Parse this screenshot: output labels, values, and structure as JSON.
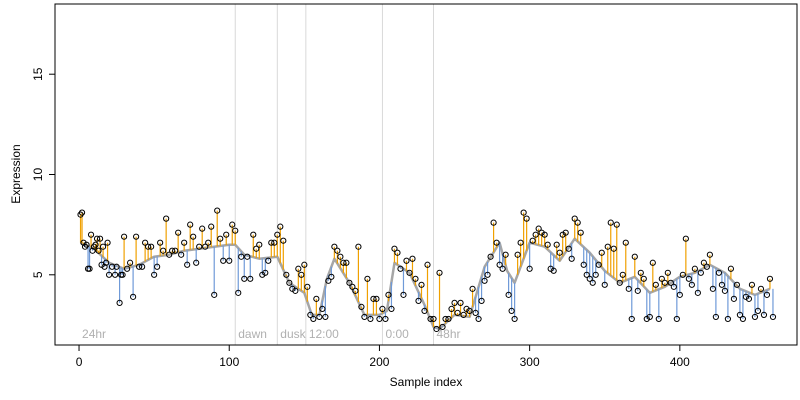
{
  "chart_data": {
    "type": "scatter",
    "title": "",
    "xlabel": "Sample index",
    "ylabel": "Expression",
    "xlim": [
      -16,
      478
    ],
    "ylim": [
      1.5,
      18.5
    ],
    "x_ticks": [
      0,
      100,
      200,
      300,
      400
    ],
    "y_ticks": [
      5,
      10,
      15
    ],
    "grid": false,
    "legend": "none",
    "colors": {
      "up_segment": "#f0a000",
      "down_segment": "#6f9ad8",
      "fitted_line": "#a6a6a6",
      "region_line": "#d9d9d9",
      "region_label": "#b0b0b0",
      "point_edge": "#000000"
    },
    "regions": [
      {
        "label": "24hr",
        "x_start": 0,
        "x_end": 104
      },
      {
        "label": "dawn",
        "x_start": 104,
        "x_end": 132
      },
      {
        "label": "dusk",
        "x_start": 132,
        "x_end": 151
      },
      {
        "label": "12:00",
        "x_start": 151,
        "x_end": 202
      },
      {
        "label": "0:00",
        "x_start": 202,
        "x_end": 236
      },
      {
        "label": "48hr",
        "x_start": 236,
        "x_end": 462
      }
    ],
    "fitted_line": [
      [
        1,
        6.6
      ],
      [
        10,
        6.3
      ],
      [
        20,
        5.6
      ],
      [
        30,
        5.3
      ],
      [
        40,
        5.5
      ],
      [
        50,
        5.9
      ],
      [
        60,
        6.0
      ],
      [
        70,
        6.2
      ],
      [
        80,
        6.3
      ],
      [
        90,
        6.4
      ],
      [
        100,
        6.5
      ],
      [
        104,
        6.5
      ],
      [
        110,
        6.0
      ],
      [
        120,
        5.8
      ],
      [
        132,
        5.9
      ],
      [
        140,
        4.6
      ],
      [
        150,
        4.1
      ],
      [
        155,
        3.0
      ],
      [
        160,
        3.0
      ],
      [
        165,
        4.8
      ],
      [
        170,
        5.8
      ],
      [
        180,
        4.6
      ],
      [
        190,
        3.0
      ],
      [
        200,
        3.0
      ],
      [
        205,
        3.2
      ],
      [
        210,
        5.6
      ],
      [
        220,
        5.1
      ],
      [
        230,
        3.5
      ],
      [
        236,
        2.4
      ],
      [
        240,
        2.3
      ],
      [
        250,
        3.0
      ],
      [
        260,
        2.9
      ],
      [
        270,
        5.4
      ],
      [
        280,
        6.6
      ],
      [
        285,
        5.2
      ],
      [
        290,
        4.6
      ],
      [
        300,
        6.6
      ],
      [
        310,
        6.4
      ],
      [
        320,
        5.7
      ],
      [
        330,
        6.8
      ],
      [
        340,
        6.1
      ],
      [
        350,
        5.2
      ],
      [
        360,
        4.6
      ],
      [
        370,
        4.9
      ],
      [
        380,
        4.1
      ],
      [
        390,
        4.4
      ],
      [
        400,
        4.9
      ],
      [
        410,
        5.1
      ],
      [
        420,
        5.5
      ],
      [
        430,
        5.1
      ],
      [
        440,
        4.3
      ],
      [
        450,
        4.0
      ],
      [
        460,
        4.3
      ]
    ],
    "points": [
      [
        1,
        8.0
      ],
      [
        2,
        8.1
      ],
      [
        3,
        6.6
      ],
      [
        4,
        6.4
      ],
      [
        5,
        6.5
      ],
      [
        6,
        5.3
      ],
      [
        7,
        5.3
      ],
      [
        8,
        7.0
      ],
      [
        9,
        6.2
      ],
      [
        10,
        6.4
      ],
      [
        11,
        6.5
      ],
      [
        12,
        6.8
      ],
      [
        13,
        6.2
      ],
      [
        14,
        6.8
      ],
      [
        15,
        5.5
      ],
      [
        16,
        6.4
      ],
      [
        17,
        5.4
      ],
      [
        18,
        5.6
      ],
      [
        19,
        6.6
      ],
      [
        20,
        5.0
      ],
      [
        22,
        5.4
      ],
      [
        24,
        5.0
      ],
      [
        25,
        5.4
      ],
      [
        27,
        3.6
      ],
      [
        28,
        5.0
      ],
      [
        29,
        5.0
      ],
      [
        30,
        6.9
      ],
      [
        32,
        5.3
      ],
      [
        34,
        5.6
      ],
      [
        36,
        3.9
      ],
      [
        38,
        6.9
      ],
      [
        40,
        5.4
      ],
      [
        42,
        5.4
      ],
      [
        44,
        6.6
      ],
      [
        46,
        6.4
      ],
      [
        48,
        6.4
      ],
      [
        50,
        5.0
      ],
      [
        52,
        5.4
      ],
      [
        54,
        6.6
      ],
      [
        56,
        6.2
      ],
      [
        58,
        7.8
      ],
      [
        60,
        6.0
      ],
      [
        62,
        6.2
      ],
      [
        64,
        6.2
      ],
      [
        66,
        7.1
      ],
      [
        68,
        6.0
      ],
      [
        70,
        6.6
      ],
      [
        72,
        5.5
      ],
      [
        74,
        7.5
      ],
      [
        76,
        6.9
      ],
      [
        78,
        5.6
      ],
      [
        80,
        6.4
      ],
      [
        82,
        7.3
      ],
      [
        84,
        6.4
      ],
      [
        86,
        6.6
      ],
      [
        88,
        7.4
      ],
      [
        90,
        4.0
      ],
      [
        92,
        8.2
      ],
      [
        94,
        6.8
      ],
      [
        96,
        5.7
      ],
      [
        98,
        7.0
      ],
      [
        100,
        5.7
      ],
      [
        102,
        7.5
      ],
      [
        104,
        7.2
      ],
      [
        106,
        4.1
      ],
      [
        108,
        5.9
      ],
      [
        110,
        4.8
      ],
      [
        112,
        5.9
      ],
      [
        114,
        4.8
      ],
      [
        116,
        7.0
      ],
      [
        118,
        6.3
      ],
      [
        120,
        6.5
      ],
      [
        122,
        5.0
      ],
      [
        124,
        5.1
      ],
      [
        126,
        5.7
      ],
      [
        128,
        6.6
      ],
      [
        130,
        6.6
      ],
      [
        132,
        7.0
      ],
      [
        134,
        7.4
      ],
      [
        136,
        6.7
      ],
      [
        138,
        5.0
      ],
      [
        140,
        4.6
      ],
      [
        142,
        4.3
      ],
      [
        144,
        4.2
      ],
      [
        146,
        5.3
      ],
      [
        148,
        5.0
      ],
      [
        150,
        5.5
      ],
      [
        152,
        4.4
      ],
      [
        154,
        3.0
      ],
      [
        156,
        2.8
      ],
      [
        158,
        3.8
      ],
      [
        160,
        2.9
      ],
      [
        162,
        3.3
      ],
      [
        164,
        2.9
      ],
      [
        166,
        4.7
      ],
      [
        168,
        4.9
      ],
      [
        170,
        6.4
      ],
      [
        172,
        6.2
      ],
      [
        174,
        5.9
      ],
      [
        176,
        5.6
      ],
      [
        178,
        5.6
      ],
      [
        180,
        4.6
      ],
      [
        182,
        4.4
      ],
      [
        184,
        4.2
      ],
      [
        186,
        6.4
      ],
      [
        188,
        3.4
      ],
      [
        190,
        2.9
      ],
      [
        192,
        4.8
      ],
      [
        194,
        2.8
      ],
      [
        196,
        3.8
      ],
      [
        198,
        3.8
      ],
      [
        200,
        2.8
      ],
      [
        202,
        3.3
      ],
      [
        204,
        2.8
      ],
      [
        206,
        4.0
      ],
      [
        208,
        3.3
      ],
      [
        210,
        6.3
      ],
      [
        212,
        6.1
      ],
      [
        214,
        5.3
      ],
      [
        216,
        4.0
      ],
      [
        218,
        5.7
      ],
      [
        220,
        5.1
      ],
      [
        222,
        5.8
      ],
      [
        224,
        4.8
      ],
      [
        226,
        3.7
      ],
      [
        228,
        4.5
      ],
      [
        230,
        3.2
      ],
      [
        232,
        5.5
      ],
      [
        234,
        2.8
      ],
      [
        236,
        2.8
      ],
      [
        238,
        2.3
      ],
      [
        240,
        5.1
      ],
      [
        242,
        2.4
      ],
      [
        244,
        2.8
      ],
      [
        246,
        2.8
      ],
      [
        248,
        3.3
      ],
      [
        250,
        3.6
      ],
      [
        252,
        3.1
      ],
      [
        254,
        3.6
      ],
      [
        256,
        3.0
      ],
      [
        258,
        3.3
      ],
      [
        260,
        3.2
      ],
      [
        262,
        4.3
      ],
      [
        264,
        3.1
      ],
      [
        266,
        2.8
      ],
      [
        268,
        3.7
      ],
      [
        270,
        4.7
      ],
      [
        272,
        5.0
      ],
      [
        274,
        5.9
      ],
      [
        276,
        7.6
      ],
      [
        278,
        6.6
      ],
      [
        280,
        5.5
      ],
      [
        282,
        5.3
      ],
      [
        284,
        6.0
      ],
      [
        286,
        4.0
      ],
      [
        288,
        3.2
      ],
      [
        290,
        2.8
      ],
      [
        292,
        6.0
      ],
      [
        294,
        6.6
      ],
      [
        296,
        8.1
      ],
      [
        298,
        7.8
      ],
      [
        300,
        5.3
      ],
      [
        302,
        6.7
      ],
      [
        304,
        7.0
      ],
      [
        306,
        7.3
      ],
      [
        308,
        7.1
      ],
      [
        310,
        7.0
      ],
      [
        312,
        6.5
      ],
      [
        314,
        5.3
      ],
      [
        316,
        5.2
      ],
      [
        318,
        6.5
      ],
      [
        320,
        6.1
      ],
      [
        322,
        7.0
      ],
      [
        324,
        7.1
      ],
      [
        326,
        6.3
      ],
      [
        328,
        5.8
      ],
      [
        330,
        7.8
      ],
      [
        332,
        7.6
      ],
      [
        334,
        7.1
      ],
      [
        336,
        5.5
      ],
      [
        338,
        5.0
      ],
      [
        340,
        4.8
      ],
      [
        342,
        4.6
      ],
      [
        344,
        5.0
      ],
      [
        346,
        5.5
      ],
      [
        348,
        6.1
      ],
      [
        350,
        4.5
      ],
      [
        352,
        6.4
      ],
      [
        354,
        7.6
      ],
      [
        356,
        6.3
      ],
      [
        358,
        7.5
      ],
      [
        360,
        4.6
      ],
      [
        362,
        5.0
      ],
      [
        364,
        6.6
      ],
      [
        366,
        4.3
      ],
      [
        368,
        2.8
      ],
      [
        370,
        5.9
      ],
      [
        372,
        4.2
      ],
      [
        374,
        5.1
      ],
      [
        376,
        4.8
      ],
      [
        378,
        2.8
      ],
      [
        380,
        2.9
      ],
      [
        382,
        5.6
      ],
      [
        384,
        4.5
      ],
      [
        386,
        2.8
      ],
      [
        388,
        4.8
      ],
      [
        390,
        4.6
      ],
      [
        392,
        5.1
      ],
      [
        394,
        4.6
      ],
      [
        396,
        4.4
      ],
      [
        398,
        2.8
      ],
      [
        400,
        4.0
      ],
      [
        402,
        5.0
      ],
      [
        404,
        6.8
      ],
      [
        406,
        4.8
      ],
      [
        408,
        4.5
      ],
      [
        410,
        5.3
      ],
      [
        412,
        4.1
      ],
      [
        414,
        5.1
      ],
      [
        416,
        5.6
      ],
      [
        418,
        5.4
      ],
      [
        420,
        6.0
      ],
      [
        422,
        4.3
      ],
      [
        424,
        2.9
      ],
      [
        426,
        5.1
      ],
      [
        428,
        4.5
      ],
      [
        430,
        4.2
      ],
      [
        432,
        2.8
      ],
      [
        434,
        5.3
      ],
      [
        436,
        3.8
      ],
      [
        438,
        4.5
      ],
      [
        440,
        3.0
      ],
      [
        442,
        2.8
      ],
      [
        444,
        3.9
      ],
      [
        446,
        3.8
      ],
      [
        448,
        4.5
      ],
      [
        450,
        2.9
      ],
      [
        452,
        3.2
      ],
      [
        454,
        4.3
      ],
      [
        456,
        3.0
      ],
      [
        458,
        4.0
      ],
      [
        460,
        4.8
      ],
      [
        462,
        2.9
      ]
    ]
  }
}
